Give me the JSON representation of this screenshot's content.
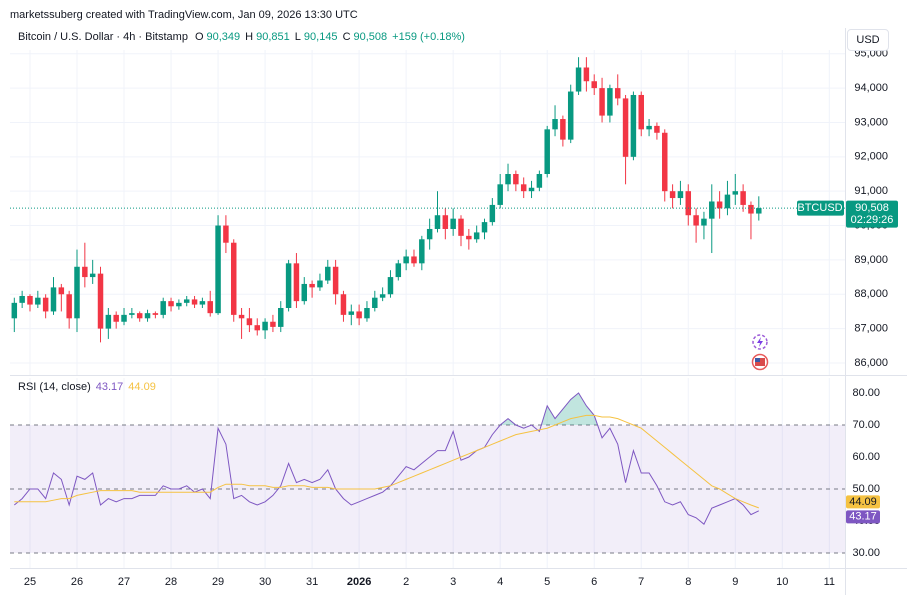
{
  "header": "marketssuberg created with TradingView.com, Jan 09, 2026 13:30 UTC",
  "chart_data": [
    {
      "type": "candlestick",
      "title": "Bitcoin / U.S. Dollar · 4h · Bitstamp",
      "ohlc_legend": [
        {
          "label": "O",
          "value": "90,349"
        },
        {
          "label": "H",
          "value": "90,851"
        },
        {
          "label": "L",
          "value": "90,145"
        },
        {
          "label": "C",
          "value": "90,508"
        }
      ],
      "change": "+159 (+0.18%)",
      "currency": "USD",
      "symbol": "BTCUSD",
      "last_price_label": "90,508",
      "countdown": "02:29:26",
      "up_color": "#089981",
      "down_color": "#f23645",
      "open": [
        87300,
        87750,
        87950,
        87700,
        87900,
        87500,
        88200,
        88000,
        87300,
        88800,
        88500,
        88600,
        87000,
        87400,
        87200,
        87400,
        87450,
        87300,
        87450,
        87400,
        87800,
        87650,
        87750,
        87850,
        87700,
        87800,
        87450,
        90000,
        89500,
        87400,
        87300,
        87100,
        86950,
        87200,
        87050,
        87600,
        88900,
        87800,
        88300,
        88200,
        88400,
        88800,
        88000,
        87400,
        87500,
        87300,
        87600,
        87900,
        88000,
        88500,
        88900,
        89100,
        88900,
        89600,
        89900,
        90300,
        89900,
        90200,
        89700,
        89600,
        89800,
        90100,
        90600,
        91200,
        91500,
        91200,
        91000,
        91100,
        91500,
        92800,
        93100,
        92500,
        93900,
        94600,
        94200,
        94000,
        93200,
        94000,
        93700,
        92000,
        93800,
        92800,
        92900,
        92700,
        91000,
        90800,
        91000,
        90300,
        90000,
        90200,
        90700,
        90500,
        90900,
        91000,
        90600,
        90349
      ],
      "high": [
        87900,
        88100,
        88000,
        88100,
        88000,
        88500,
        88300,
        88100,
        89300,
        89500,
        89000,
        88800,
        87600,
        87500,
        87600,
        87600,
        87500,
        87550,
        87500,
        87900,
        87900,
        87850,
        87950,
        87950,
        87900,
        88100,
        90300,
        90300,
        89600,
        87600,
        87600,
        87300,
        87300,
        87400,
        87800,
        89000,
        89200,
        88500,
        88400,
        88600,
        89000,
        89000,
        88100,
        87700,
        87700,
        87800,
        88100,
        88200,
        88700,
        89000,
        89300,
        89300,
        89700,
        90200,
        91000,
        90500,
        90500,
        90300,
        89900,
        90000,
        90200,
        90800,
        91500,
        91800,
        91600,
        91400,
        91300,
        91600,
        92900,
        93500,
        93200,
        94100,
        94900,
        94900,
        94400,
        94300,
        94100,
        94400,
        93800,
        93900,
        93900,
        93100,
        93000,
        92800,
        91200,
        91300,
        91200,
        90500,
        90400,
        91200,
        91000,
        91300,
        91500,
        91200,
        90700,
        90851
      ],
      "low": [
        86900,
        87600,
        87500,
        87600,
        87300,
        87400,
        87500,
        87000,
        86900,
        88200,
        88300,
        86600,
        86700,
        87000,
        87100,
        87300,
        87200,
        87200,
        87300,
        87300,
        87500,
        87550,
        87650,
        87600,
        87600,
        87350,
        87400,
        89200,
        87200,
        86700,
        86900,
        86800,
        86700,
        86900,
        86900,
        87500,
        87600,
        87700,
        87900,
        88100,
        88300,
        87700,
        87200,
        87100,
        87100,
        87200,
        87500,
        87800,
        87900,
        88400,
        88700,
        88800,
        88700,
        89300,
        89800,
        89600,
        89700,
        89400,
        89300,
        89500,
        89600,
        90000,
        90500,
        91000,
        91000,
        90800,
        90800,
        91000,
        91400,
        92600,
        92300,
        92400,
        93800,
        93900,
        93800,
        93000,
        93000,
        93500,
        91200,
        91900,
        92600,
        92600,
        92500,
        90700,
        90500,
        90600,
        90000,
        89500,
        89600,
        89200,
        90200,
        90300,
        90600,
        90400,
        89600,
        90145
      ],
      "close": [
        87750,
        87950,
        87700,
        87900,
        87500,
        88200,
        88000,
        87300,
        88800,
        88500,
        88600,
        87000,
        87400,
        87200,
        87400,
        87450,
        87300,
        87450,
        87400,
        87800,
        87650,
        87750,
        87850,
        87700,
        87800,
        87450,
        90000,
        89500,
        87400,
        87300,
        87100,
        86950,
        87200,
        87050,
        87600,
        88900,
        87800,
        88300,
        88200,
        88400,
        88800,
        88000,
        87400,
        87500,
        87300,
        87600,
        87900,
        88000,
        88500,
        88900,
        89100,
        88900,
        89600,
        89900,
        90300,
        89900,
        90200,
        89700,
        89600,
        89800,
        90100,
        90600,
        91200,
        91500,
        91200,
        91000,
        91100,
        91500,
        92800,
        93100,
        92500,
        93900,
        94600,
        94200,
        94000,
        93200,
        94000,
        93700,
        92000,
        93800,
        92800,
        92900,
        92700,
        91000,
        90800,
        91000,
        90300,
        90000,
        90200,
        90700,
        90500,
        90900,
        91000,
        90600,
        90349,
        90508
      ],
      "ylim": [
        85650,
        95400
      ],
      "yticks": [
        {
          "value": 86000,
          "label": "86,000"
        },
        {
          "value": 87000,
          "label": "87,000"
        },
        {
          "value": 88000,
          "label": "88,000"
        },
        {
          "value": 89000,
          "label": "89,000"
        },
        {
          "value": 90000,
          "label": "90,000"
        },
        {
          "value": 91000,
          "label": "91,000"
        },
        {
          "value": 92000,
          "label": "92,000"
        },
        {
          "value": 93000,
          "label": "93,000"
        },
        {
          "value": 94000,
          "label": "94,000"
        },
        {
          "value": 95000,
          "label": "95,000"
        }
      ],
      "xlim": [
        -0.55,
        106
      ],
      "xticks": [
        {
          "value": 2,
          "label": "25"
        },
        {
          "value": 8,
          "label": "26"
        },
        {
          "value": 14,
          "label": "27"
        },
        {
          "value": 20,
          "label": "28"
        },
        {
          "value": 26,
          "label": "29"
        },
        {
          "value": 32,
          "label": "30"
        },
        {
          "value": 38,
          "label": "31"
        },
        {
          "value": 44,
          "label": "2026"
        },
        {
          "value": 50,
          "label": "2"
        },
        {
          "value": 56,
          "label": "3"
        },
        {
          "value": 62,
          "label": "4"
        },
        {
          "value": 68,
          "label": "5"
        },
        {
          "value": 74,
          "label": "6"
        },
        {
          "value": 80,
          "label": "7"
        },
        {
          "value": 86,
          "label": "8"
        },
        {
          "value": 92,
          "label": "9"
        },
        {
          "value": 98,
          "label": "10"
        },
        {
          "value": 104,
          "label": "11"
        }
      ],
      "grid": true
    },
    {
      "type": "line",
      "title": "RSI (14, close)",
      "series": [
        {
          "color": "#7e57c2",
          "last_label": "43.17",
          "values": [
            45,
            47,
            50,
            50,
            47,
            55,
            53,
            45,
            54,
            53,
            55,
            45,
            47,
            46,
            47,
            47,
            48,
            48,
            48,
            51,
            50,
            50,
            51,
            49,
            50,
            47,
            69,
            64,
            47,
            48,
            46,
            45,
            46,
            48,
            51,
            58,
            52,
            53,
            52,
            53,
            56,
            50,
            47,
            45,
            46,
            47,
            48,
            49,
            51,
            54,
            57,
            56,
            58,
            60,
            62,
            62,
            68,
            59,
            60,
            62,
            63,
            67,
            70,
            72,
            70,
            69,
            70,
            68,
            76,
            72,
            75,
            78,
            80,
            76,
            73,
            66,
            69,
            64,
            52,
            62,
            55,
            55,
            51,
            46,
            45,
            46,
            42,
            41,
            39,
            44,
            45,
            46,
            47,
            45,
            42,
            43.17
          ]
        },
        {
          "color": "#f5c242",
          "last_label": "44.09",
          "values": [
            46,
            46,
            46,
            46,
            46,
            46.5,
            47,
            47,
            48,
            48.5,
            49,
            49.5,
            49.5,
            49.5,
            49.5,
            49.5,
            49,
            49,
            49,
            49,
            49,
            49,
            49,
            49,
            49,
            49,
            50.5,
            51.5,
            51.5,
            51.5,
            51,
            51,
            51,
            50.5,
            50.5,
            51,
            51,
            51,
            50.5,
            50.5,
            50.5,
            50,
            50,
            50,
            50,
            50,
            50,
            50.5,
            51,
            52,
            53,
            54,
            55,
            56,
            57,
            58,
            59,
            60,
            61,
            62,
            63,
            64,
            65,
            66,
            67,
            67.5,
            68,
            68.5,
            69,
            70,
            71,
            72,
            72.5,
            73,
            73,
            72.5,
            72.5,
            72,
            71,
            70,
            69,
            67,
            65,
            63,
            61,
            59,
            57,
            55,
            53,
            51,
            50,
            48.5,
            47,
            46,
            45,
            44.09
          ]
        }
      ],
      "levels": [
        30,
        50,
        70
      ],
      "ylim": [
        25.3,
        84.7
      ],
      "yticks": [
        {
          "value": 30,
          "label": "30.00"
        },
        {
          "value": 40,
          "label": "40.00"
        },
        {
          "value": 50,
          "label": "50.00"
        },
        {
          "value": 60,
          "label": "60.00"
        },
        {
          "value": 70,
          "label": "70.00"
        },
        {
          "value": 80,
          "label": "80.00"
        }
      ]
    }
  ]
}
